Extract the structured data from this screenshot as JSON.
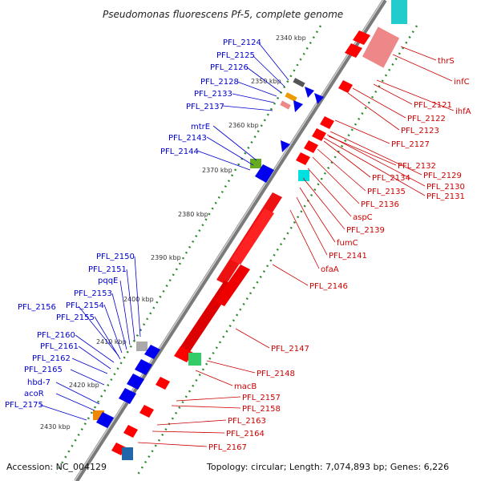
{
  "title": "Pseudomonas fluorescens Pf-5, complete genome",
  "footer": {
    "accession": "Accession: NC_004129",
    "topology": "Topology: circular; Length: 7,074,893 bp; Genes: 6,226"
  },
  "colors": {
    "backbone": "#8c8c8c",
    "left_strand": "#0000ee",
    "left_label": "#0000cc",
    "right_strand": "#ee0000",
    "right_label": "#cc0000",
    "dots": "#2e8b2e"
  },
  "kbp_markers": [
    "2340 kbp",
    "2350 kbp",
    "2360 kbp",
    "2370 kbp",
    "2380 kbp",
    "2390 kbp",
    "2400 kbp",
    "2410 kbp",
    "2420 kbp",
    "2430 kbp"
  ],
  "left_labels": [
    "PFL_2124",
    "PFL_2125",
    "PFL_2126",
    "PFL_2128",
    "PFL_2133",
    "PFL_2137",
    "mtrE",
    "PFL_2143",
    "PFL_2144",
    "PFL_2150",
    "PFL_2151",
    "pqqE",
    "PFL_2153",
    "PFL_2154",
    "PFL_2156",
    "PFL_2155",
    "PFL_2160",
    "PFL_2161",
    "PFL_2162",
    "PFL_2165",
    "hbd-7",
    "acoR",
    "PFL_2175"
  ],
  "right_labels": [
    "thrS",
    "infC",
    "PFL_2121",
    "ihfA",
    "PFL_2122",
    "PFL_2123",
    "PFL_2127",
    "PFL_2132",
    "PFL_2129",
    "PFL_2134",
    "PFL_2130",
    "PFL_2131",
    "PFL_2135",
    "PFL_2136",
    "aspC",
    "PFL_2139",
    "fumC",
    "PFL_2141",
    "ofaA",
    "PFL_2146",
    "PFL_2147",
    "PFL_2148",
    "macB",
    "PFL_2157",
    "PFL_2158",
    "PFL_2163",
    "PFL_2164",
    "PFL_2167"
  ]
}
